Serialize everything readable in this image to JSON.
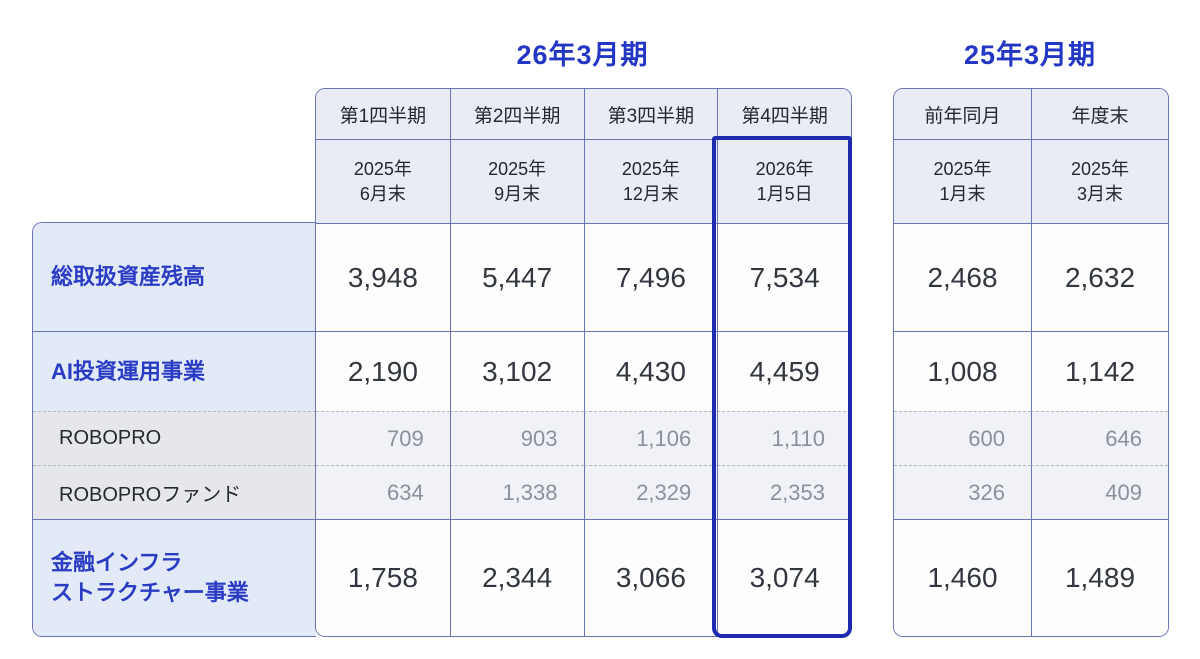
{
  "chart_data": {
    "type": "table",
    "col_groups": [
      {
        "title": "26年3月期",
        "columns": [
          {
            "quarter": "第1四半期",
            "date_line1": "2025年",
            "date_line2": "6月末"
          },
          {
            "quarter": "第2四半期",
            "date_line1": "2025年",
            "date_line2": "9月末"
          },
          {
            "quarter": "第3四半期",
            "date_line1": "2025年",
            "date_line2": "12月末"
          },
          {
            "quarter": "第4四半期",
            "date_line1": "2026年",
            "date_line2": "1月5日"
          }
        ]
      },
      {
        "title": "25年3月期",
        "columns": [
          {
            "quarter": "前年同月",
            "date_line1": "2025年",
            "date_line2": "1月末"
          },
          {
            "quarter": "年度末",
            "date_line1": "2025年",
            "date_line2": "3月末"
          }
        ]
      }
    ],
    "rows": [
      {
        "label": "総取扱資産残高",
        "style": "primary",
        "values_fy26": [
          "3,948",
          "5,447",
          "7,496",
          "7,534"
        ],
        "values_fy25": [
          "2,468",
          "2,632"
        ]
      },
      {
        "label": "AI投資運用事業",
        "style": "primary",
        "values_fy26": [
          "2,190",
          "3,102",
          "4,430",
          "4,459"
        ],
        "values_fy25": [
          "1,008",
          "1,142"
        ]
      },
      {
        "label": "ROBOPRO",
        "style": "sub",
        "values_fy26": [
          "709",
          "903",
          "1,106",
          "1,110"
        ],
        "values_fy25": [
          "600",
          "646"
        ]
      },
      {
        "label": "ROBOPROファンド",
        "style": "sub",
        "values_fy26": [
          "634",
          "1,338",
          "2,329",
          "2,353"
        ],
        "values_fy25": [
          "326",
          "409"
        ]
      },
      {
        "label_line1": "金融インフラ",
        "label_line2": "ストラクチャー事業",
        "style": "primary",
        "values_fy26": [
          "1,758",
          "2,344",
          "3,066",
          "3,074"
        ],
        "values_fy25": [
          "1,460",
          "1,489"
        ]
      }
    ],
    "highlighted_column": "第4四半期",
    "layout": {
      "grid": true,
      "legend_position": "none"
    }
  },
  "colors": {
    "accent_blue_text": "#2336c4",
    "label_blue_text": "#2b3cc4",
    "highlight_border": "#1e2bb0",
    "grid_border": "#6b74b3",
    "header_bg": "#e9ecf5",
    "label_primary_bg": "#e3eaf7",
    "label_sub_bg": "#e6e7ea",
    "sub_value_bg": "#f0f2f7",
    "main_number": "#32363e",
    "sub_number": "#8b9099"
  }
}
